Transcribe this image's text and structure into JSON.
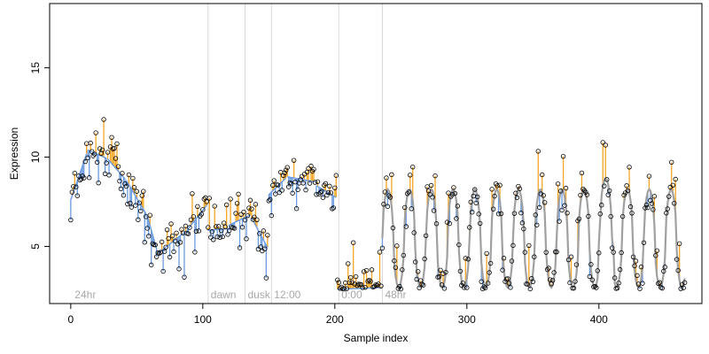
{
  "chart_data": {
    "type": "line",
    "xlabel": "Sample index",
    "ylabel": "Expression",
    "xlim": [
      -16,
      478
    ],
    "ylim": [
      1.8,
      18.6
    ],
    "xticks": [
      0,
      100,
      200,
      300,
      400
    ],
    "yticks": [
      5,
      10,
      15
    ],
    "grid": false,
    "colors": {
      "residual_up": "#f5a623",
      "residual_down": "#6b9be0",
      "fit_line_early": "#6b9be0",
      "fit_line_late": "#a0a0a0",
      "vline": "#d8d8d8",
      "marker_text": "#a8a8a8",
      "points": "#000000"
    },
    "vertical_markers": [
      {
        "x": 104,
        "label": "dawn"
      },
      {
        "x": 132,
        "label": "dusk"
      },
      {
        "x": 152,
        "label": "12:00"
      },
      {
        "x": 203,
        "label": "0:00"
      },
      {
        "x": 236,
        "label": "48hr"
      }
    ],
    "corner_label": {
      "x": 3,
      "label": "24hr"
    },
    "segments": [
      {
        "from": 0,
        "to": 13,
        "start": 7.6,
        "end": 10.4
      },
      {
        "from": 13,
        "to": 28,
        "start": 10.4,
        "end": 9.9
      },
      {
        "from": 28,
        "to": 42,
        "start": 9.9,
        "end": 8.7
      },
      {
        "from": 42,
        "to": 58,
        "start": 8.7,
        "end": 6.7
      },
      {
        "from": 58,
        "to": 66,
        "start": 6.7,
        "end": 4.6
      },
      {
        "from": 66,
        "to": 88,
        "start": 4.6,
        "end": 5.9
      },
      {
        "from": 88,
        "to": 104,
        "start": 5.9,
        "end": 7.4
      },
      {
        "from": 104,
        "to": 120,
        "start": 5.9,
        "end": 6.0
      },
      {
        "from": 120,
        "to": 137,
        "start": 6.2,
        "end": 6.8
      },
      {
        "from": 137,
        "to": 150,
        "start": 6.6,
        "end": 4.8
      },
      {
        "from": 150,
        "to": 164,
        "start": 7.9,
        "end": 8.9
      },
      {
        "from": 164,
        "to": 186,
        "start": 8.9,
        "end": 8.6
      },
      {
        "from": 186,
        "to": 202,
        "start": 8.4,
        "end": 7.7
      },
      {
        "from": 202,
        "to": 236,
        "start": 2.6,
        "end": 2.7
      }
    ],
    "oscillation": {
      "from": 236,
      "to": 466,
      "period": 16.5,
      "phase": 236,
      "low": 2.7,
      "high": 8.2,
      "variations": [
        {
          "from": 400,
          "to": 412,
          "low": 4.3,
          "high": 8.8
        }
      ]
    },
    "point_count": 466
  }
}
